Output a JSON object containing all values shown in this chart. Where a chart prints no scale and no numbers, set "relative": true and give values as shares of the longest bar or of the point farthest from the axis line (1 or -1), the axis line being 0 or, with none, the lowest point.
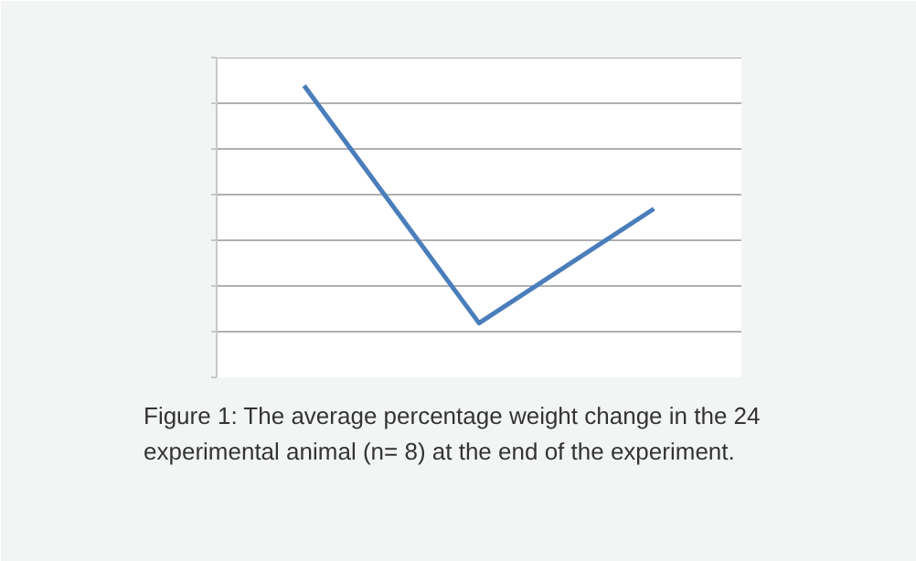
{
  "chart_data": {
    "type": "line",
    "relative": true,
    "categories": [
      null,
      null,
      null
    ],
    "series": [
      {
        "color": "#4a7ebb",
        "values": [
          0.08,
          -1,
          -0.48
        ]
      }
    ],
    "grid": "y",
    "marker": "none",
    "line_style": "solid",
    "annotations": [
      "Figure 1: The average percentage weight change in the 24 experimental animal (n= 8) at the end of the experiment."
    ]
  }
}
